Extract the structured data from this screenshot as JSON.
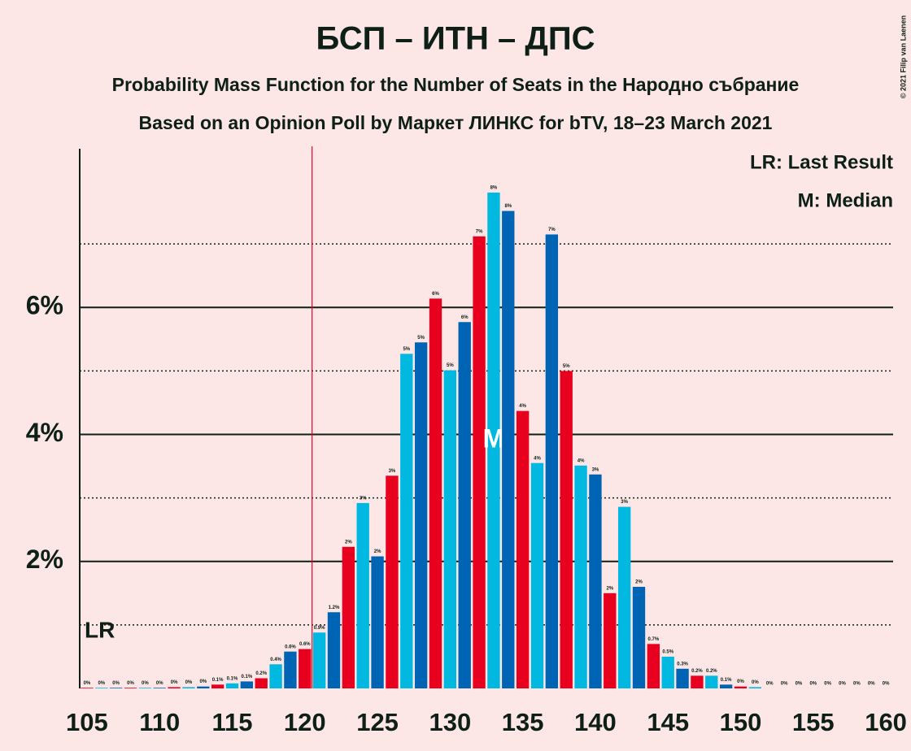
{
  "chart_data": {
    "type": "bar",
    "title": "БСП – ИТН – ДПС",
    "subtitle": "Probability Mass Function for the Number of Seats in the Народно събрание",
    "subtitle2": "Based on an Opinion Poll by Маркет ЛИНКС for bTV, 18–23 March 2021",
    "copyright": "© 2021 Filip van Laenen",
    "legend": [
      "LR: Last Result",
      "M: Median"
    ],
    "last_result_marker": "LR",
    "median_marker": "M",
    "last_result": 120.5,
    "median": 133,
    "palette": [
      "#e8001f",
      "#00b8e0",
      "#0064b4"
    ],
    "x": [
      105,
      106,
      107,
      108,
      109,
      110,
      111,
      112,
      113,
      114,
      115,
      116,
      117,
      118,
      119,
      120,
      121,
      122,
      123,
      124,
      125,
      126,
      127,
      128,
      129,
      130,
      131,
      132,
      133,
      134,
      135,
      136,
      137,
      138,
      139,
      140,
      141,
      142,
      143,
      144,
      145,
      146,
      147,
      148,
      149,
      150,
      151,
      152,
      153,
      154,
      155,
      156,
      157,
      158,
      159,
      160
    ],
    "values": [
      0.01,
      0.01,
      0.01,
      0.01,
      0.01,
      0.01,
      0.02,
      0.02,
      0.03,
      0.06,
      0.08,
      0.11,
      0.16,
      0.38,
      0.58,
      0.62,
      0.88,
      1.2,
      2.23,
      2.92,
      2.08,
      3.35,
      5.27,
      5.45,
      6.14,
      5.01,
      5.77,
      7.12,
      7.81,
      7.52,
      4.37,
      3.55,
      7.15,
      5.0,
      3.51,
      3.37,
      1.5,
      2.86,
      1.6,
      0.7,
      0.5,
      0.31,
      0.2,
      0.2,
      0.06,
      0.03,
      0.02,
      0,
      0,
      0,
      0,
      0,
      0,
      0,
      0,
      0
    ],
    "value_labels": [
      "0%",
      "0%",
      "0%",
      "0%",
      "0%",
      "0%",
      "0%",
      "0%",
      "0%",
      "0.1%",
      "0.1%",
      "0.1%",
      "0.2%",
      "0.4%",
      "0.6%",
      "0.6%",
      "0.9%",
      "1.2%",
      "2%",
      "3%",
      "2%",
      "3%",
      "5%",
      "5%",
      "6%",
      "5%",
      "6%",
      "7%",
      "8%",
      "8%",
      "4%",
      "4%",
      "7%",
      "5%",
      "4%",
      "3%",
      "2%",
      "3%",
      "2%",
      "0.7%",
      "0.5%",
      "0.3%",
      "0.2%",
      "0.2%",
      "0.1%",
      "0%",
      "0%",
      "0%",
      "0%",
      "0%",
      "0%",
      "0%",
      "0%",
      "0%",
      "0%",
      "0%"
    ],
    "xlim": [
      104.5,
      160.5
    ],
    "xticks": [
      105,
      110,
      115,
      120,
      125,
      130,
      135,
      140,
      145,
      150,
      155,
      160
    ],
    "ylim": [
      0,
      8.5
    ],
    "yticks": [
      {
        "value": 2,
        "label": "2%"
      },
      {
        "value": 4,
        "label": "4%"
      },
      {
        "value": 6,
        "label": "6%"
      }
    ],
    "minor_yticks": [
      1,
      3,
      5,
      7
    ],
    "grid": true
  }
}
